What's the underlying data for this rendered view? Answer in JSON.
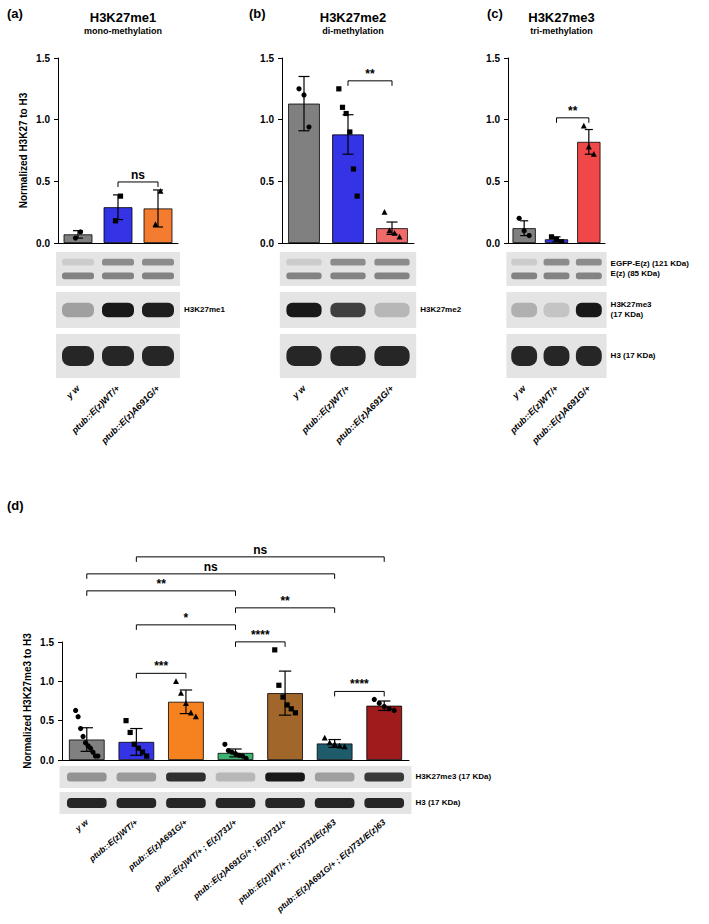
{
  "chart_data": [
    {
      "type": "bar",
      "panel": "(a)",
      "title": "H3K27me1",
      "subtitle": "mono-methylation",
      "y_label": "Normalized H3K27 to H3",
      "categories": [
        "y w",
        "ptub::E(z)WT/+",
        "ptub::E(z)A691G/+"
      ],
      "values": [
        0.07,
        0.29,
        0.28
      ],
      "errors": [
        0.03,
        0.1,
        0.15
      ],
      "points": [
        [
          0.04,
          0.09
        ],
        [
          0.18,
          0.38
        ],
        [
          0.15,
          0.42
        ]
      ],
      "colors": [
        "#808080",
        "#3434e6",
        "#f47c30"
      ],
      "ylim": [
        0,
        1.5
      ],
      "yticks": [
        {
          "value": 0,
          "label": "0.0"
        },
        {
          "value": 0.5,
          "label": "0.5"
        },
        {
          "value": 1,
          "label": "1.0"
        },
        {
          "value": 1.5,
          "label": "1.5"
        }
      ],
      "grid": false,
      "comparisons": [
        {
          "from": 1,
          "to": 2,
          "label": "ns"
        }
      ],
      "blot_rows": [
        [],
        [
          "H3K27me1"
        ],
        []
      ]
    },
    {
      "type": "bar",
      "panel": "(b)",
      "title": "H3K27me2",
      "subtitle": "di-methylation",
      "categories": [
        "y w",
        "ptub::E(z)WT/+",
        "ptub::E(z)A691G/+"
      ],
      "values": [
        1.13,
        0.88,
        0.12
      ],
      "errors": [
        0.22,
        0.16,
        0.05
      ],
      "points": [
        [
          1.25,
          1.2,
          0.94
        ],
        [
          1.25,
          1.1,
          1.05,
          0.9,
          0.6,
          0.38
        ],
        [
          0.25,
          0.1,
          0.08,
          0.05
        ]
      ],
      "colors": [
        "#808080",
        "#3434e6",
        "#f06a6a"
      ],
      "ylim": [
        0,
        1.5
      ],
      "yticks": [
        {
          "value": 0,
          "label": "0.0"
        },
        {
          "value": 0.5,
          "label": "0.5"
        },
        {
          "value": 1,
          "label": "1.0"
        },
        {
          "value": 1.5,
          "label": "1.5"
        }
      ],
      "grid": false,
      "comparisons": [
        {
          "from": 1,
          "to": 2,
          "label": "**"
        }
      ],
      "blot_rows": [
        [],
        [
          "H3K27me2"
        ],
        []
      ]
    },
    {
      "type": "bar",
      "panel": "(c)",
      "title": "H3K27me3",
      "subtitle": "tri-methylation",
      "categories": [
        "y w",
        "ptub::E(z)WT/+",
        "ptub::E(z)A691G/+"
      ],
      "values": [
        0.12,
        0.03,
        0.82
      ],
      "errors": [
        0.06,
        0.02,
        0.1
      ],
      "points": [
        [
          0.2,
          0.1,
          0.06
        ],
        [
          0.05,
          0.03,
          0.01
        ],
        [
          0.95,
          0.78,
          0.72
        ]
      ],
      "colors": [
        "#808080",
        "#3434e6",
        "#f04848"
      ],
      "ylim": [
        0,
        1.5
      ],
      "yticks": [
        {
          "value": 0,
          "label": "0.0"
        },
        {
          "value": 0.5,
          "label": "0.5"
        },
        {
          "value": 1,
          "label": "1.0"
        },
        {
          "value": 1.5,
          "label": "1.5"
        }
      ],
      "grid": false,
      "comparisons": [
        {
          "from": 1,
          "to": 2,
          "label": "**"
        }
      ],
      "blot_rows": [
        [
          "EGFP-E(z) (121 KDa)",
          "E(z) (85 KDa)"
        ],
        [
          "H3K27me3",
          "(17 KDa)"
        ],
        [
          "H3 (17 KDa)"
        ]
      ]
    },
    {
      "type": "bar",
      "panel": "(d)",
      "y_label": "Normalized H3K27me3 to H3",
      "categories": [
        "y w",
        "ptub::E(z)WT/+",
        "ptub::E(z)A691G/+",
        "ptub::E(z)WT/+ ; E(z)731/+",
        "ptub::E(z)A691G/+ ; E(z)731/+",
        "ptub::E(z)WT/+ ; E(z)731/E(z)63",
        "ptub::E(z)A691G/+ ; E(z)731/E(z)63"
      ],
      "values": [
        0.26,
        0.23,
        0.74,
        0.09,
        0.85,
        0.21,
        0.69
      ],
      "errors": [
        0.15,
        0.17,
        0.15,
        0.05,
        0.28,
        0.05,
        0.06
      ],
      "points": [
        [
          0.63,
          0.55,
          0.4,
          0.3,
          0.22,
          0.18,
          0.15,
          0.1,
          0.05,
          0.05
        ],
        [
          0.5,
          0.35,
          0.2,
          0.15,
          0.1,
          0.05
        ],
        [
          1.0,
          0.85,
          0.72,
          0.6,
          0.55
        ],
        [
          0.2,
          0.12,
          0.1,
          0.08,
          0.06,
          0.05,
          0.02
        ],
        [
          1.4,
          0.95,
          0.8,
          0.7,
          0.65,
          0.6
        ],
        [
          0.28,
          0.22,
          0.2,
          0.18,
          0.17
        ],
        [
          0.77,
          0.72,
          0.68,
          0.65,
          0.63
        ]
      ],
      "colors": [
        "#808080",
        "#3434e6",
        "#f5821f",
        "#3cb371",
        "#a0662a",
        "#1f5c6b",
        "#a01b1b"
      ],
      "ylim": [
        0,
        1.5
      ],
      "yticks": [
        {
          "value": 0,
          "label": "0.0"
        },
        {
          "value": 0.5,
          "label": "0.5"
        },
        {
          "value": 1,
          "label": "1.0"
        },
        {
          "value": 1.5,
          "label": "1.5"
        }
      ],
      "grid": false,
      "comparisons": [
        {
          "from": 1,
          "to": 2,
          "label": "***"
        },
        {
          "from": 3,
          "to": 4,
          "label": "****"
        },
        {
          "from": 5,
          "to": 6,
          "label": "****"
        },
        {
          "from": 1,
          "to": 3,
          "label": "*"
        },
        {
          "from": 0,
          "to": 3,
          "label": "**"
        },
        {
          "from": 3,
          "to": 5,
          "label": "**"
        },
        {
          "from": 0,
          "to": 5,
          "label": "ns"
        },
        {
          "from": 1,
          "to": 6,
          "label": "ns"
        }
      ],
      "blot_rows": [
        [
          "H3K27me3 (17 KDa)"
        ],
        [
          "H3 (17 KDa)"
        ]
      ]
    }
  ]
}
